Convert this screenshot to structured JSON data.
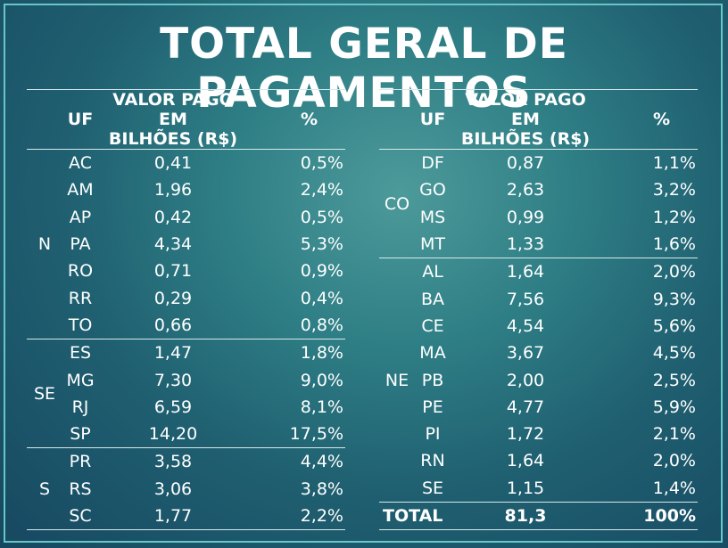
{
  "title": "TOTAL GERAL DE PAGAMENTOS",
  "headers": {
    "uf": "UF",
    "valor_line1": "VALOR PAGO EM",
    "valor_line2": "BILHÕES (R$)",
    "pct": "%"
  },
  "left_groups": [
    {
      "region": "N",
      "rows": [
        {
          "uf": "AC",
          "valor": "0,41",
          "pct": "0,5%"
        },
        {
          "uf": "AM",
          "valor": "1,96",
          "pct": "2,4%"
        },
        {
          "uf": "AP",
          "valor": "0,42",
          "pct": "0,5%"
        },
        {
          "uf": "PA",
          "valor": "4,34",
          "pct": "5,3%"
        },
        {
          "uf": "RO",
          "valor": "0,71",
          "pct": "0,9%"
        },
        {
          "uf": "RR",
          "valor": "0,29",
          "pct": "0,4%"
        },
        {
          "uf": "TO",
          "valor": "0,66",
          "pct": "0,8%"
        }
      ]
    },
    {
      "region": "SE",
      "rows": [
        {
          "uf": "ES",
          "valor": "1,47",
          "pct": "1,8%"
        },
        {
          "uf": "MG",
          "valor": "7,30",
          "pct": "9,0%"
        },
        {
          "uf": "RJ",
          "valor": "6,59",
          "pct": "8,1%"
        },
        {
          "uf": "SP",
          "valor": "14,20",
          "pct": "17,5%"
        }
      ]
    },
    {
      "region": "S",
      "rows": [
        {
          "uf": "PR",
          "valor": "3,58",
          "pct": "4,4%"
        },
        {
          "uf": "RS",
          "valor": "3,06",
          "pct": "3,8%"
        },
        {
          "uf": "SC",
          "valor": "1,77",
          "pct": "2,2%"
        }
      ]
    }
  ],
  "right_groups": [
    {
      "region": "CO",
      "rows": [
        {
          "uf": "DF",
          "valor": "0,87",
          "pct": "1,1%"
        },
        {
          "uf": "GO",
          "valor": "2,63",
          "pct": "3,2%"
        },
        {
          "uf": "MS",
          "valor": "0,99",
          "pct": "1,2%"
        },
        {
          "uf": "MT",
          "valor": "1,33",
          "pct": "1,6%"
        }
      ]
    },
    {
      "region": "NE",
      "rows": [
        {
          "uf": "AL",
          "valor": "1,64",
          "pct": "2,0%"
        },
        {
          "uf": "BA",
          "valor": "7,56",
          "pct": "9,3%"
        },
        {
          "uf": "CE",
          "valor": "4,54",
          "pct": "5,6%"
        },
        {
          "uf": "MA",
          "valor": "3,67",
          "pct": "4,5%"
        },
        {
          "uf": "PB",
          "valor": "2,00",
          "pct": "2,5%"
        },
        {
          "uf": "PE",
          "valor": "4,77",
          "pct": "5,9%"
        },
        {
          "uf": "PI",
          "valor": "1,72",
          "pct": "2,1%"
        },
        {
          "uf": "RN",
          "valor": "1,64",
          "pct": "2,0%"
        },
        {
          "uf": "SE",
          "valor": "1,15",
          "pct": "1,4%"
        }
      ]
    }
  ],
  "total": {
    "label": "TOTAL",
    "valor": "81,3",
    "pct": "100%"
  }
}
